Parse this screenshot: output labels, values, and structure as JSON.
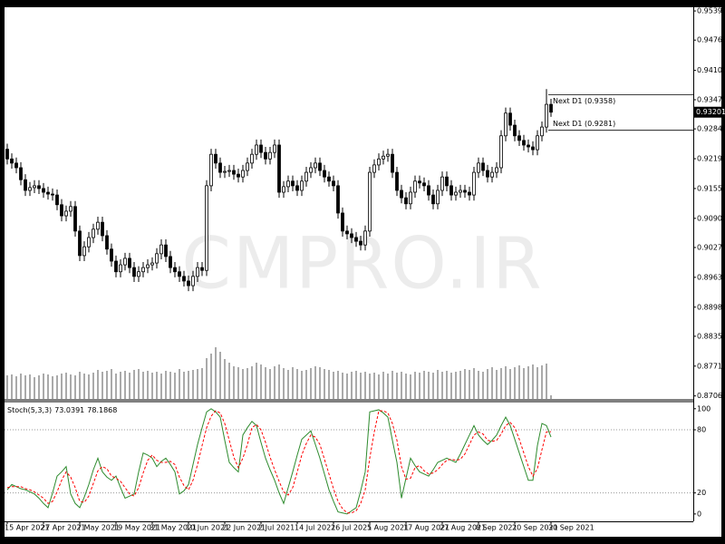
{
  "chart_data": [
    {
      "type": "candlestick",
      "categories": [
        "15 Apr 2021",
        null,
        null,
        null,
        null,
        null,
        null,
        null,
        "27 Apr 2021",
        null,
        null,
        null,
        null,
        null,
        null,
        null,
        "7 May 2021",
        null,
        null,
        null,
        null,
        null,
        null,
        null,
        "19 May 2021",
        null,
        null,
        null,
        null,
        null,
        null,
        null,
        "31 May 2021",
        null,
        null,
        null,
        null,
        null,
        null,
        null,
        "10 Jun 2021",
        null,
        null,
        null,
        null,
        null,
        null,
        null,
        "22 Jun 2021",
        null,
        null,
        null,
        null,
        null,
        null,
        null,
        "2 Jul 2021",
        null,
        null,
        null,
        null,
        null,
        null,
        null,
        "14 Jul 2021",
        null,
        null,
        null,
        null,
        null,
        null,
        null,
        "26 Jul 2021",
        null,
        null,
        null,
        null,
        null,
        null,
        null,
        "5 Aug 2021",
        null,
        null,
        null,
        null,
        null,
        null,
        null,
        "17 Aug 2021",
        null,
        null,
        null,
        null,
        null,
        null,
        null,
        "27 Aug 2021",
        null,
        null,
        null,
        null,
        null,
        null,
        null,
        "8 Sep 2021",
        null,
        null,
        null,
        null,
        null,
        null,
        null,
        "20 Sep 2021",
        null,
        null,
        null,
        null,
        null,
        null,
        null,
        "30 Sep 2021"
      ],
      "open": [
        0.924,
        0.9219,
        0.921,
        0.92,
        0.9174,
        0.9151,
        0.9157,
        0.9161,
        0.9155,
        0.9147,
        0.9143,
        0.9141,
        0.912,
        0.9096,
        0.9106,
        0.9116,
        0.9063,
        0.901,
        0.9029,
        0.9049,
        0.9067,
        0.9082,
        0.9053,
        0.9024,
        0.8998,
        0.8975,
        0.899,
        0.9004,
        0.8984,
        0.8965,
        0.8975,
        0.8984,
        0.899,
        0.8994,
        0.9014,
        0.9033,
        0.9008,
        0.8984,
        0.8975,
        0.8965,
        0.8955,
        0.8945,
        0.8965,
        0.8984,
        0.8978,
        0.9161,
        0.9229,
        0.921,
        0.919,
        0.9192,
        0.9194,
        0.9186,
        0.918,
        0.9194,
        0.921,
        0.9229,
        0.9249,
        0.9233,
        0.9219,
        0.9233,
        0.9249,
        0.9147,
        0.9159,
        0.9171,
        0.9161,
        0.9151,
        0.9171,
        0.919,
        0.92,
        0.921,
        0.9194,
        0.918,
        0.9171,
        0.9161,
        0.9102,
        0.9063,
        0.9057,
        0.9049,
        0.9041,
        0.9033,
        0.9063,
        0.919,
        0.9206,
        0.9219,
        0.9225,
        0.9229,
        0.919,
        0.9151,
        0.9135,
        0.9122,
        0.9147,
        0.9171,
        0.9167,
        0.9161,
        0.9141,
        0.9122,
        0.9151,
        0.918,
        0.9161,
        0.9141,
        0.9147,
        0.9151,
        0.9147,
        0.9141,
        0.919,
        0.921,
        0.9194,
        0.918,
        0.919,
        0.92,
        0.9269,
        0.9318,
        0.9292,
        0.9269,
        0.9259,
        0.9249,
        0.9245,
        0.9239,
        0.9269,
        0.9288,
        0.9337
      ],
      "high": [
        0.9252,
        0.9231,
        0.9222,
        0.9212,
        0.9186,
        0.9169,
        0.9173,
        0.9173,
        0.9167,
        0.9159,
        0.9155,
        0.9153,
        0.9132,
        0.9118,
        0.9128,
        0.9128,
        0.9075,
        0.9041,
        0.9061,
        0.9079,
        0.9094,
        0.9094,
        0.9065,
        0.9036,
        0.901,
        0.9002,
        0.9016,
        0.9016,
        0.8996,
        0.8987,
        0.8996,
        0.9002,
        0.9006,
        0.9026,
        0.9045,
        0.9045,
        0.902,
        0.8996,
        0.8987,
        0.8977,
        0.8967,
        0.8977,
        0.8996,
        0.8996,
        0.9173,
        0.9241,
        0.9241,
        0.9222,
        0.9204,
        0.9206,
        0.9206,
        0.9198,
        0.9206,
        0.9222,
        0.9241,
        0.9261,
        0.9261,
        0.9245,
        0.9245,
        0.9261,
        0.9261,
        0.9171,
        0.9183,
        0.9183,
        0.9173,
        0.9183,
        0.9202,
        0.9212,
        0.9222,
        0.9222,
        0.9206,
        0.9192,
        0.9183,
        0.9173,
        0.9114,
        0.9075,
        0.9069,
        0.9061,
        0.9053,
        0.9075,
        0.9202,
        0.9218,
        0.9231,
        0.9237,
        0.9241,
        0.9241,
        0.9202,
        0.9163,
        0.9147,
        0.9159,
        0.9183,
        0.9183,
        0.9179,
        0.9173,
        0.9153,
        0.9163,
        0.9192,
        0.9192,
        0.9173,
        0.9159,
        0.9163,
        0.9163,
        0.9159,
        0.9202,
        0.9222,
        0.9222,
        0.9206,
        0.9202,
        0.9212,
        0.9281,
        0.933,
        0.933,
        0.9304,
        0.9281,
        0.9271,
        0.9261,
        0.9257,
        0.9281,
        0.93,
        0.937,
        0.9349
      ],
      "low": [
        0.9207,
        0.9198,
        0.9188,
        0.9162,
        0.9139,
        0.9139,
        0.9145,
        0.9143,
        0.9135,
        0.9131,
        0.9129,
        0.9108,
        0.9084,
        0.9084,
        0.9094,
        0.9051,
        0.8998,
        0.8998,
        0.9017,
        0.9037,
        0.9055,
        0.9041,
        0.9012,
        0.8986,
        0.8963,
        0.8963,
        0.8978,
        0.8972,
        0.8953,
        0.8953,
        0.8963,
        0.8972,
        0.8978,
        0.8982,
        0.9002,
        0.8996,
        0.8972,
        0.8963,
        0.8953,
        0.8943,
        0.8933,
        0.8933,
        0.8953,
        0.8966,
        0.8966,
        0.9149,
        0.9198,
        0.9178,
        0.9178,
        0.918,
        0.9174,
        0.9168,
        0.9168,
        0.9182,
        0.9198,
        0.9217,
        0.9221,
        0.9207,
        0.9207,
        0.9221,
        0.9135,
        0.9135,
        0.9147,
        0.9149,
        0.9139,
        0.9139,
        0.9159,
        0.9178,
        0.9188,
        0.9182,
        0.9168,
        0.9159,
        0.9149,
        0.909,
        0.9051,
        0.9045,
        0.9037,
        0.9029,
        0.9021,
        0.9021,
        0.9051,
        0.9178,
        0.9194,
        0.9207,
        0.9213,
        0.9178,
        0.9139,
        0.9123,
        0.911,
        0.911,
        0.9135,
        0.9155,
        0.9149,
        0.9129,
        0.911,
        0.911,
        0.9139,
        0.9149,
        0.9129,
        0.9129,
        0.9135,
        0.9135,
        0.9129,
        0.9129,
        0.9178,
        0.9182,
        0.9168,
        0.9168,
        0.9178,
        0.9188,
        0.9257,
        0.928,
        0.9257,
        0.9247,
        0.9237,
        0.9233,
        0.9227,
        0.9227,
        0.9257,
        0.9276,
        0.931
      ],
      "close": [
        0.9219,
        0.921,
        0.92,
        0.9174,
        0.9151,
        0.9157,
        0.9161,
        0.9155,
        0.9147,
        0.9143,
        0.9141,
        0.912,
        0.9096,
        0.9106,
        0.9116,
        0.9063,
        0.901,
        0.9029,
        0.9049,
        0.9067,
        0.9082,
        0.9053,
        0.9024,
        0.8998,
        0.8975,
        0.899,
        0.9004,
        0.8984,
        0.8965,
        0.8975,
        0.8984,
        0.899,
        0.8994,
        0.9014,
        0.9033,
        0.9008,
        0.8984,
        0.8975,
        0.8965,
        0.8955,
        0.8945,
        0.8965,
        0.8984,
        0.8978,
        0.9161,
        0.9229,
        0.921,
        0.919,
        0.9192,
        0.9194,
        0.9186,
        0.918,
        0.9194,
        0.921,
        0.9229,
        0.9249,
        0.9233,
        0.9219,
        0.9233,
        0.9249,
        0.9147,
        0.9159,
        0.9171,
        0.9161,
        0.9151,
        0.9171,
        0.919,
        0.92,
        0.921,
        0.9194,
        0.918,
        0.9171,
        0.9161,
        0.9102,
        0.9063,
        0.9057,
        0.9049,
        0.9041,
        0.9033,
        0.9063,
        0.919,
        0.9206,
        0.9219,
        0.9225,
        0.9229,
        0.919,
        0.9151,
        0.9135,
        0.9122,
        0.9147,
        0.9171,
        0.9167,
        0.9161,
        0.9141,
        0.9122,
        0.9151,
        0.918,
        0.9161,
        0.9141,
        0.9147,
        0.9151,
        0.9147,
        0.9141,
        0.919,
        0.921,
        0.9194,
        0.918,
        0.919,
        0.92,
        0.9269,
        0.9318,
        0.9292,
        0.9269,
        0.9259,
        0.9249,
        0.9245,
        0.9239,
        0.9269,
        0.9288,
        0.9337,
        0.93201
      ],
      "volume": [
        26,
        27,
        25,
        28,
        26,
        27,
        24,
        26,
        28,
        27,
        25,
        26,
        28,
        29,
        27,
        26,
        30,
        28,
        27,
        29,
        32,
        30,
        31,
        33,
        28,
        30,
        31,
        29,
        32,
        33,
        30,
        31,
        29,
        30,
        28,
        31,
        30,
        29,
        33,
        30,
        31,
        32,
        33,
        34,
        45,
        50,
        57,
        52,
        44,
        40,
        36,
        35,
        33,
        34,
        36,
        40,
        38,
        35,
        33,
        36,
        38,
        34,
        32,
        35,
        33,
        31,
        32,
        34,
        36,
        35,
        33,
        32,
        30,
        31,
        29,
        28,
        30,
        31,
        29,
        30,
        28,
        29,
        27,
        30,
        28,
        31,
        29,
        30,
        28,
        27,
        30,
        29,
        31,
        30,
        29,
        32,
        30,
        31,
        29,
        30,
        31,
        33,
        32,
        34,
        31,
        30,
        33,
        35,
        32,
        34,
        36,
        33,
        35,
        37,
        34,
        36,
        38,
        35,
        37,
        39,
        4
      ],
      "ylim": [
        0.87,
        0.9547
      ],
      "yticks": [
        {
          "value": 0.9539,
          "label": "0.95390"
        },
        {
          "value": 0.9476,
          "label": "0.94760"
        },
        0.94105,
        {
          "value": 0.9347,
          "label": "0.93470"
        },
        {
          "value": 0.9284,
          "label": "0.92840"
        },
        0.92195,
        {
          "value": 0.9155,
          "label": "0.91550"
        },
        0.90905,
        0.90275,
        {
          "value": 0.8963,
          "label": "0.89630"
        },
        0.88985,
        0.88355,
        {
          "value": 0.8771,
          "label": "0.87710"
        },
        0.87065
      ],
      "grid": false,
      "up_color": "#ffffff",
      "down_color": "#000000",
      "volume_color": "#555555",
      "annotations": [
        {
          "label": "Next D1 (0.9358)",
          "value": 0.9358
        },
        {
          "label": "Next D1 (0.9281)",
          "value": 0.9281
        }
      ],
      "watermark": "CMPRO.IR"
    },
    {
      "type": "line",
      "title": "Stoch(5,3,3)",
      "ylim": [
        -7,
        105
      ],
      "yticks": [
        100,
        80,
        20,
        0
      ],
      "levels": [
        80,
        20
      ],
      "series": [
        {
          "color": "#2e8b2e",
          "style": "solid",
          "values": [
            23,
            28,
            26,
            24,
            23,
            21,
            19,
            15,
            10,
            6,
            20,
            36,
            40,
            45,
            19,
            10,
            6,
            16,
            28,
            42,
            53,
            40,
            35,
            32,
            36,
            25,
            15,
            17,
            19,
            40,
            58,
            56,
            53,
            45,
            50,
            53,
            47,
            40,
            19,
            22,
            28,
            47,
            66,
            82,
            97,
            100,
            97,
            92,
            70,
            49,
            44,
            40,
            75,
            82,
            88,
            84,
            68,
            53,
            42,
            32,
            20,
            10,
            25,
            40,
            56,
            71,
            75,
            79,
            66,
            53,
            38,
            23,
            12,
            2,
            1,
            0,
            3,
            6,
            22,
            40,
            97,
            98,
            99,
            96,
            92,
            70,
            49,
            15,
            34,
            53,
            46,
            40,
            38,
            36,
            42,
            49,
            51,
            53,
            51,
            49,
            57,
            66,
            75,
            84,
            75,
            70,
            66,
            70,
            75,
            84,
            92,
            84,
            71,
            58,
            45,
            32,
            32,
            65,
            86,
            84,
            73.0391
          ]
        },
        {
          "color": "#ff0000",
          "style": "dashed",
          "values": [
            25,
            26,
            26,
            26,
            24,
            23,
            21,
            18,
            15,
            10,
            12,
            21,
            32,
            40,
            35,
            25,
            12,
            11,
            17,
            29,
            41,
            45,
            43,
            36,
            34,
            31,
            25,
            19,
            17,
            25,
            39,
            51,
            56,
            51,
            49,
            49,
            50,
            47,
            35,
            27,
            23,
            32,
            47,
            65,
            82,
            93,
            98,
            96,
            86,
            70,
            54,
            44,
            53,
            66,
            82,
            85,
            80,
            68,
            54,
            42,
            31,
            21,
            18,
            25,
            40,
            56,
            67,
            75,
            73,
            66,
            52,
            38,
            24,
            12,
            5,
            1,
            1,
            3,
            10,
            23,
            53,
            78,
            98,
            98,
            96,
            86,
            70,
            45,
            33,
            34,
            44,
            46,
            41,
            38,
            39,
            42,
            47,
            51,
            52,
            51,
            52,
            57,
            66,
            75,
            78,
            76,
            70,
            69,
            70,
            76,
            84,
            87,
            82,
            71,
            58,
            45,
            36,
            43,
            61,
            78,
            78.1868
          ]
        }
      ]
    }
  ]
}
